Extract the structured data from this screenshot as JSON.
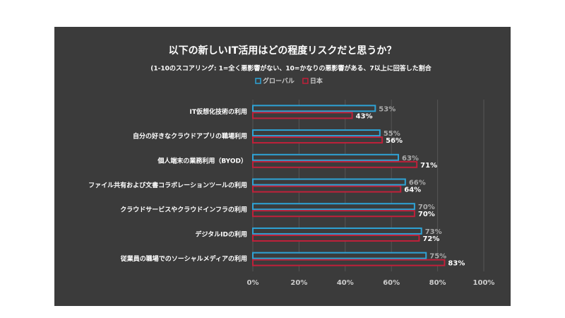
{
  "chart_data": {
    "type": "hbar",
    "title": "以下の新しいIT活用はどの程度リスクだと思うか？",
    "subtitle": "(1-10のスコアリング: 1=全く悪影響がない、10=かなりの悪影響がある、7以上に回答した割合",
    "categories": [
      "IT仮想化技術の利用",
      "自分の好きなクラウドアプリの職場利用",
      "個人端末の業務利用（BYOD）",
      "ファイル共有および文書コラボレーションツールの利用",
      "クラウドサービスやクラウドインフラの利用",
      "デジタルIDの利用",
      "従業員の職場でのソーシャルメディアの利用"
    ],
    "series": [
      {
        "name": "グローバル",
        "color": "#2ea3d6",
        "values": [
          53,
          55,
          63,
          66,
          70,
          73,
          75
        ],
        "value_labels": [
          "53%",
          "55%",
          "63%",
          "66%",
          "70%",
          "73%",
          "75%"
        ]
      },
      {
        "name": "日本",
        "color": "#c0203a",
        "values": [
          43,
          56,
          71,
          64,
          70,
          72,
          83
        ],
        "value_labels": [
          "43%",
          "56%",
          "71%",
          "64%",
          "70%",
          "72%",
          "83%"
        ]
      }
    ],
    "xlim": [
      0,
      100
    ],
    "xticks": [
      {
        "value": 0,
        "label": "0%"
      },
      {
        "value": 20,
        "label": "20%"
      },
      {
        "value": 40,
        "label": "40%"
      },
      {
        "value": 60,
        "label": "60%"
      },
      {
        "value": 80,
        "label": "80%"
      },
      {
        "value": 100,
        "label": "100%"
      }
    ],
    "grid": true
  }
}
